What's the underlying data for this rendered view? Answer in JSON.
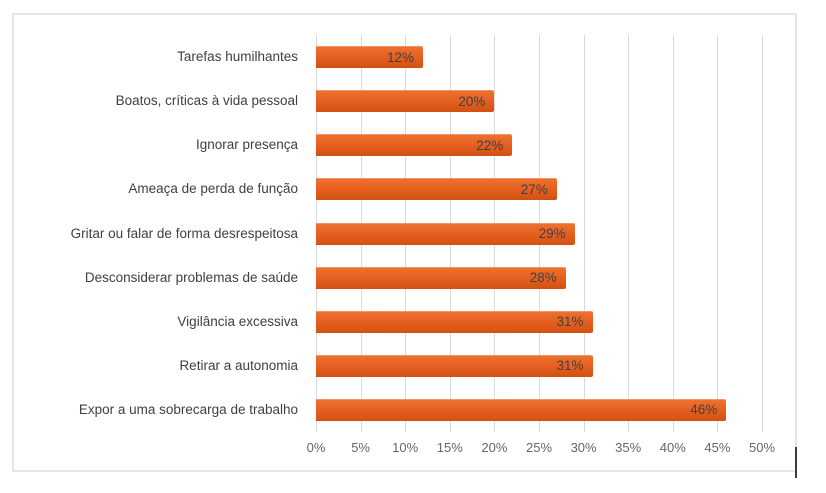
{
  "chart_data": {
    "type": "bar",
    "orientation": "horizontal",
    "title": "",
    "xlabel": "",
    "ylabel": "",
    "categories": [
      "Tarefas humilhantes",
      "Boatos, críticas à vida pessoal",
      "Ignorar presença",
      "Ameaça de perda de função",
      "Gritar ou falar de forma desrespeitosa",
      "Desconsiderar problemas de saúde",
      "Vigilância excessiva",
      "Retirar a autonomia",
      "Expor a uma sobrecarga de trabalho"
    ],
    "values": [
      12,
      20,
      22,
      27,
      29,
      28,
      31,
      31,
      46
    ],
    "data_labels": [
      "12%",
      "20%",
      "22%",
      "27%",
      "29%",
      "28%",
      "31%",
      "31%",
      "46%"
    ],
    "x_ticks": [
      "0%",
      "5%",
      "10%",
      "15%",
      "20%",
      "25%",
      "30%",
      "35%",
      "40%",
      "45%",
      "50%"
    ],
    "x_tick_values": [
      0,
      5,
      10,
      15,
      20,
      25,
      30,
      35,
      40,
      45,
      50
    ],
    "xlim": [
      0,
      50
    ],
    "grid": "vertical-only",
    "legend": "none",
    "data_label_position": "inside-end",
    "colors": {
      "bar_top": "#ee7231",
      "bar_mid": "#e35c1d",
      "bar_bottom": "#cf5212",
      "value_label": "#404040",
      "category_label": "#3f3f3f",
      "tick_label": "#666666",
      "gridline": "#d9d9d9",
      "frame_border": "#e6e6e6",
      "chart_background": "#ffffff"
    }
  }
}
